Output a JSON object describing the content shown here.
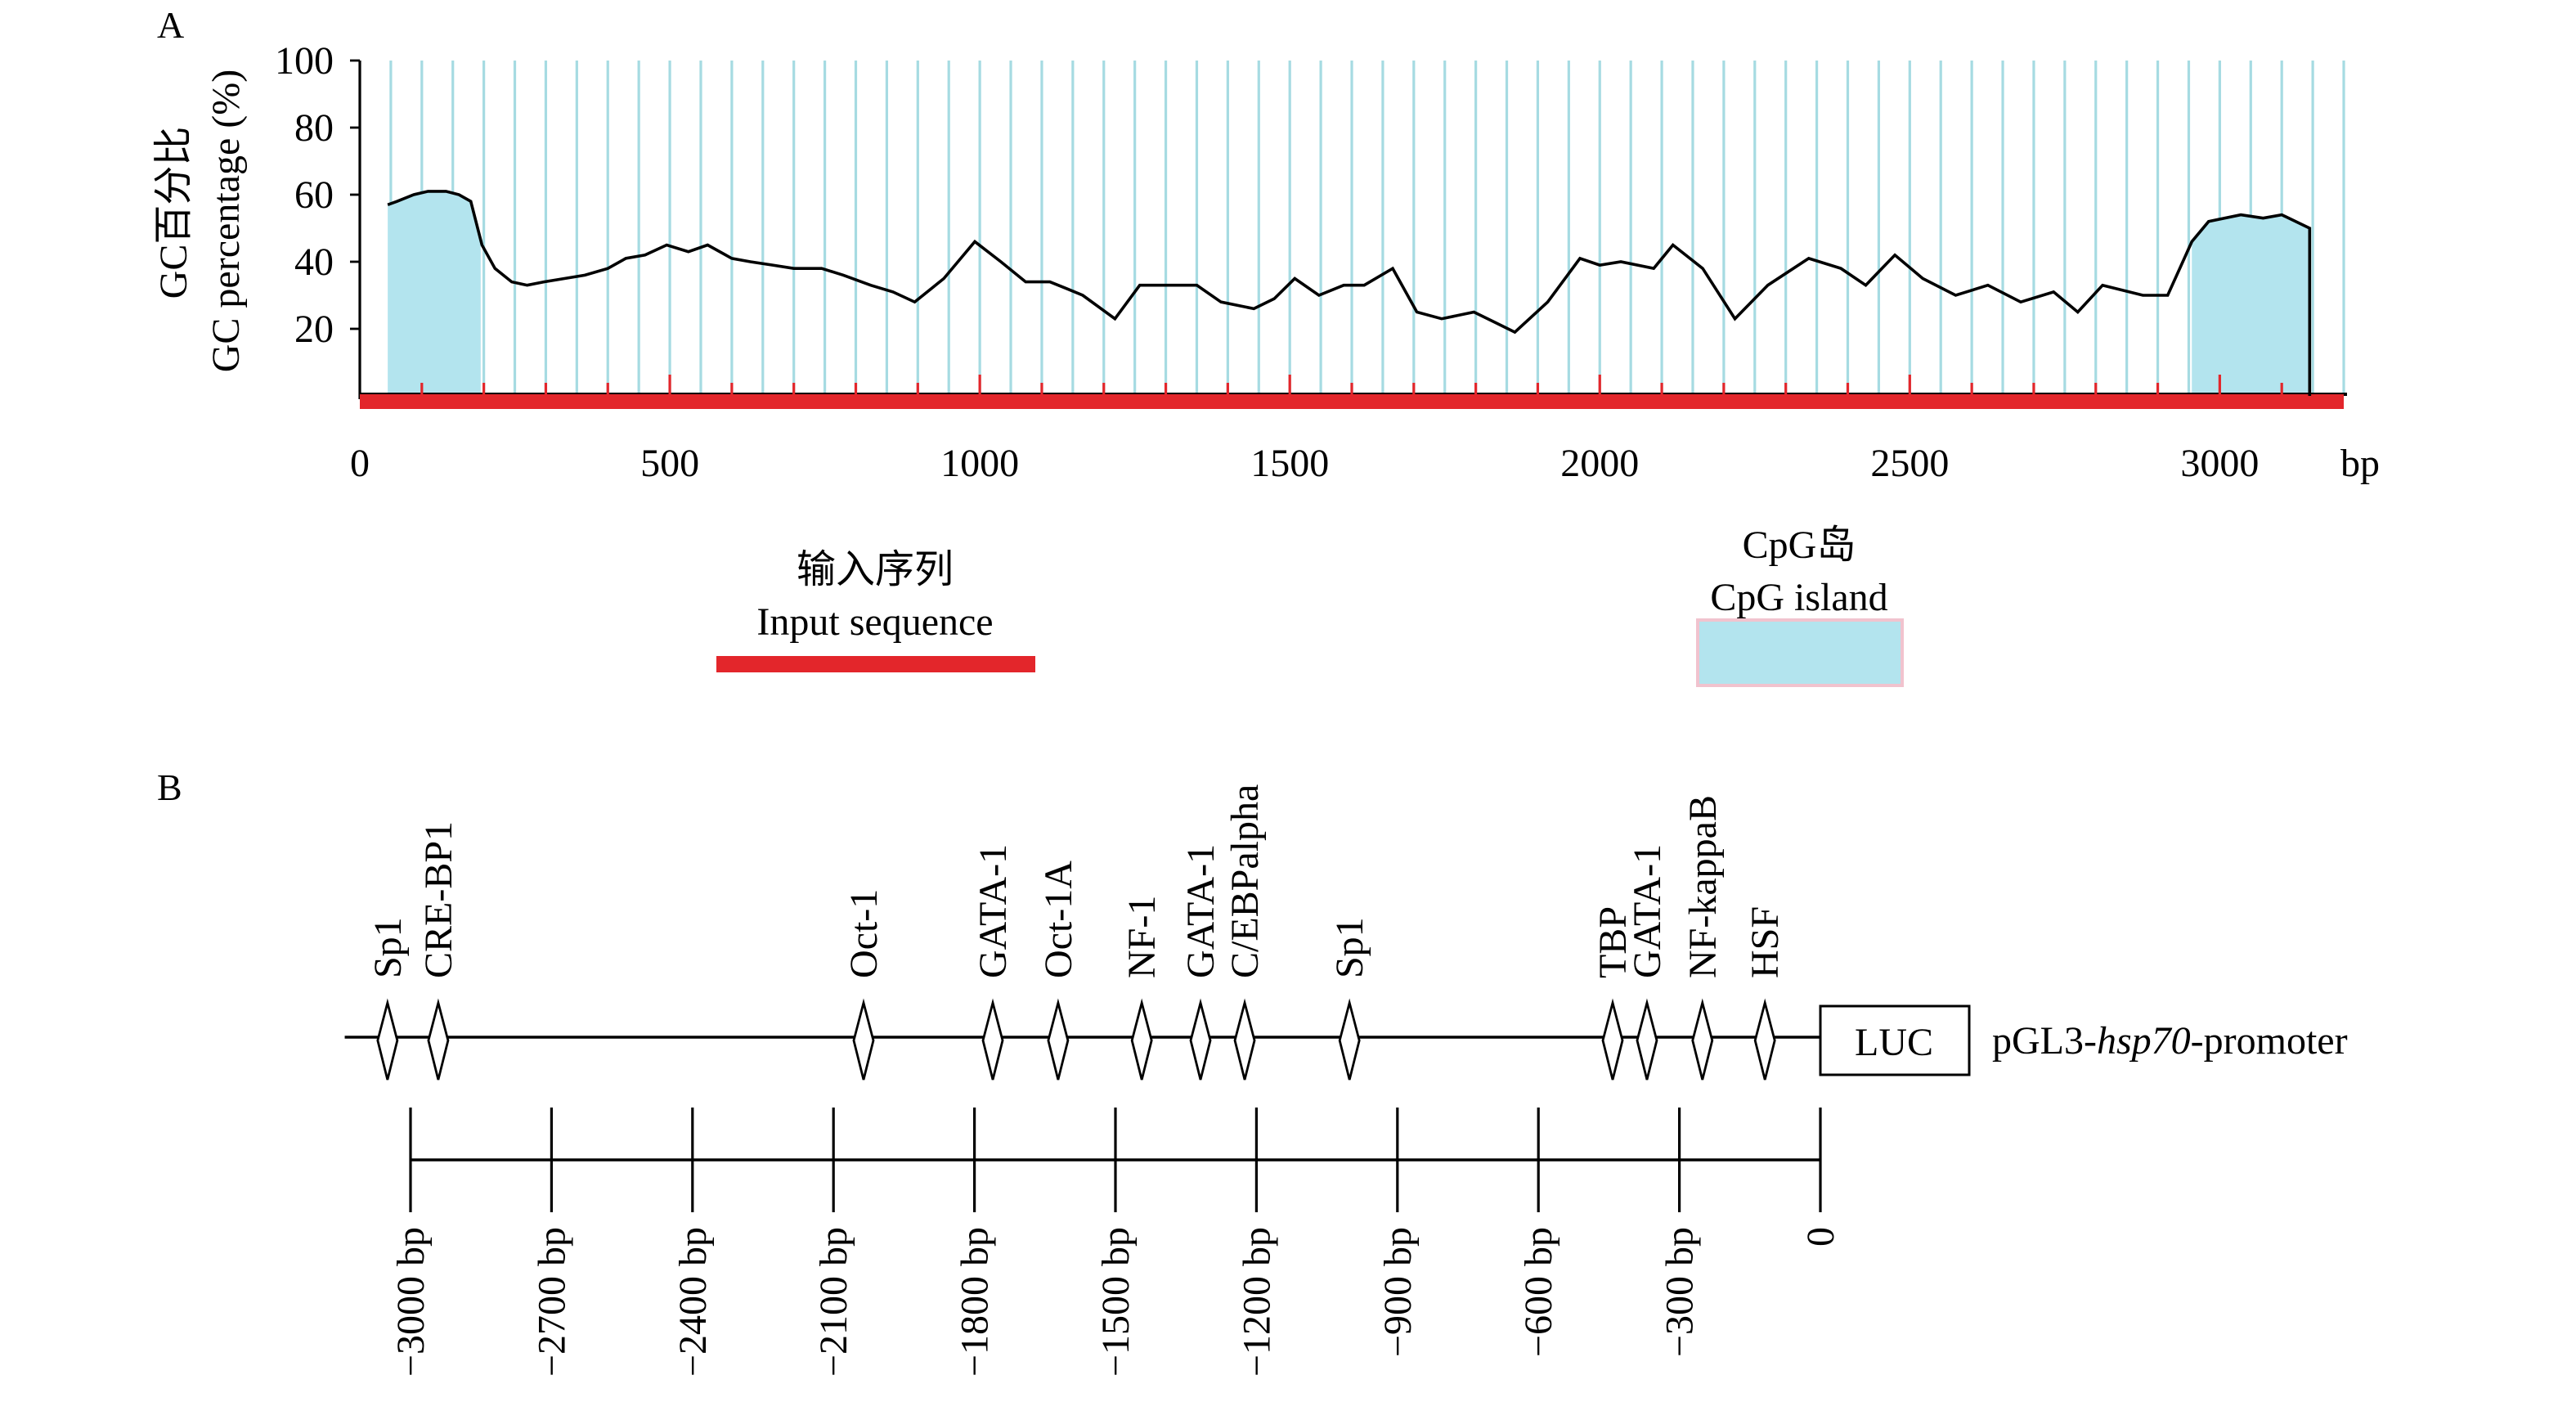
{
  "panels": {
    "a_label": "A",
    "b_label": "B"
  },
  "colors": {
    "grid": "#a6dbe2",
    "cpg_fill": "#b3e4ee",
    "cpg_legend_border": "#f1c3ce",
    "input_bar": "#e3262b",
    "line": "#000000"
  },
  "chart_data": {
    "type": "line",
    "title": "",
    "xlabel": "bp",
    "ylabel_cn": "GC百分比",
    "ylabel_en": "GC percentage (%)",
    "xlim": [
      0,
      3200
    ],
    "ylim": [
      0,
      100
    ],
    "x_ticks": [
      0,
      500,
      1000,
      1500,
      2000,
      2500,
      3000
    ],
    "y_ticks": [
      20,
      40,
      60,
      80,
      100
    ],
    "grid": true,
    "grid_step_bp": 50,
    "series": [
      {
        "points": [
          [
            45,
            57
          ],
          [
            60,
            58
          ],
          [
            87,
            60
          ],
          [
            110,
            61
          ],
          [
            139,
            61
          ],
          [
            160,
            60
          ],
          [
            179,
            58
          ],
          [
            197,
            45
          ],
          [
            218,
            38
          ],
          [
            245,
            34
          ],
          [
            270,
            33
          ],
          [
            297,
            34
          ],
          [
            330,
            35
          ],
          [
            363,
            36
          ],
          [
            400,
            38
          ],
          [
            429,
            41
          ],
          [
            460,
            42
          ],
          [
            495,
            45
          ],
          [
            530,
            43
          ],
          [
            561,
            45
          ],
          [
            600,
            41
          ],
          [
            630,
            40
          ],
          [
            666,
            39
          ],
          [
            700,
            38
          ],
          [
            745,
            38
          ],
          [
            780,
            36
          ],
          [
            824,
            33
          ],
          [
            860,
            31
          ],
          [
            895,
            28
          ],
          [
            942,
            35
          ],
          [
            992,
            46
          ],
          [
            1034,
            40
          ],
          [
            1074,
            34
          ],
          [
            1113,
            34
          ],
          [
            1140,
            32
          ],
          [
            1166,
            30
          ],
          [
            1218,
            23
          ],
          [
            1258,
            33
          ],
          [
            1300,
            33
          ],
          [
            1350,
            33
          ],
          [
            1389,
            28
          ],
          [
            1442,
            26
          ],
          [
            1475,
            29
          ],
          [
            1508,
            35
          ],
          [
            1547,
            30
          ],
          [
            1587,
            33
          ],
          [
            1620,
            33
          ],
          [
            1666,
            38
          ],
          [
            1705,
            25
          ],
          [
            1745,
            23
          ],
          [
            1797,
            25
          ],
          [
            1830,
            22
          ],
          [
            1863,
            19
          ],
          [
            1916,
            28
          ],
          [
            1968,
            41
          ],
          [
            2000,
            39
          ],
          [
            2034,
            40
          ],
          [
            2087,
            38
          ],
          [
            2118,
            45
          ],
          [
            2166,
            38
          ],
          [
            2218,
            23
          ],
          [
            2271,
            33
          ],
          [
            2337,
            41
          ],
          [
            2389,
            38
          ],
          [
            2429,
            33
          ],
          [
            2476,
            42
          ],
          [
            2521,
            35
          ],
          [
            2574,
            30
          ],
          [
            2626,
            33
          ],
          [
            2679,
            28
          ],
          [
            2732,
            31
          ],
          [
            2771,
            25
          ],
          [
            2811,
            33
          ],
          [
            2876,
            30
          ],
          [
            2916,
            30
          ],
          [
            2955,
            46
          ],
          [
            2982,
            52
          ],
          [
            3034,
            54
          ],
          [
            3070,
            53
          ],
          [
            3100,
            54
          ],
          [
            3145,
            50
          ]
        ]
      }
    ],
    "cpg_islands_bp": [
      [
        45,
        195
      ],
      [
        2955,
        3145
      ]
    ],
    "input_sequence_bp": [
      0,
      3200
    ],
    "sequence_marker_step_bp": 100,
    "legend_position": "below",
    "legend": [
      {
        "label_cn": "输入序列",
        "label_en": "Input sequence"
      },
      {
        "label_cn": "CpG岛",
        "label_en": "CpG island"
      }
    ]
  },
  "promoter_map": {
    "reporter": "LUC",
    "construct": {
      "prefix": "pGL3-",
      "gene": "hsp70",
      "suffix": "-promoter"
    },
    "line_extent_bp": [
      -3140,
      0
    ],
    "scale_range_bp": [
      -3000,
      0
    ],
    "sites": [
      {
        "name": "Sp1",
        "position_bp": -3049
      },
      {
        "name": "CRE-BP1",
        "position_bp": -2941
      },
      {
        "name": "Oct-1",
        "position_bp": -2036
      },
      {
        "name": "GATA-1",
        "position_bp": -1761
      },
      {
        "name": "Oct-1A",
        "position_bp": -1622
      },
      {
        "name": "NF-1",
        "position_bp": -1444
      },
      {
        "name": "GATA-1",
        "position_bp": -1319
      },
      {
        "name": "C/EBPalpha",
        "position_bp": -1225
      },
      {
        "name": "Sp1",
        "position_bp": -1002
      },
      {
        "name": "TBP",
        "position_bp": -442
      },
      {
        "name": "GATA-1",
        "position_bp": -369
      },
      {
        "name": "NF-kappaB",
        "position_bp": -251
      },
      {
        "name": "HSF",
        "position_bp": -118
      }
    ],
    "scale_ticks": [
      {
        "value": -3000,
        "label": "−3000 bp"
      },
      {
        "value": -2700,
        "label": "−2700 bp"
      },
      {
        "value": -2400,
        "label": "−2400 bp"
      },
      {
        "value": -2100,
        "label": "−2100 bp"
      },
      {
        "value": -1800,
        "label": "−1800 bp"
      },
      {
        "value": -1500,
        "label": "−1500 bp"
      },
      {
        "value": -1200,
        "label": "−1200 bp"
      },
      {
        "value": -900,
        "label": "−900 bp"
      },
      {
        "value": -600,
        "label": "−600 bp"
      },
      {
        "value": -300,
        "label": "−300 bp"
      },
      {
        "value": 0,
        "label": "0"
      }
    ]
  }
}
